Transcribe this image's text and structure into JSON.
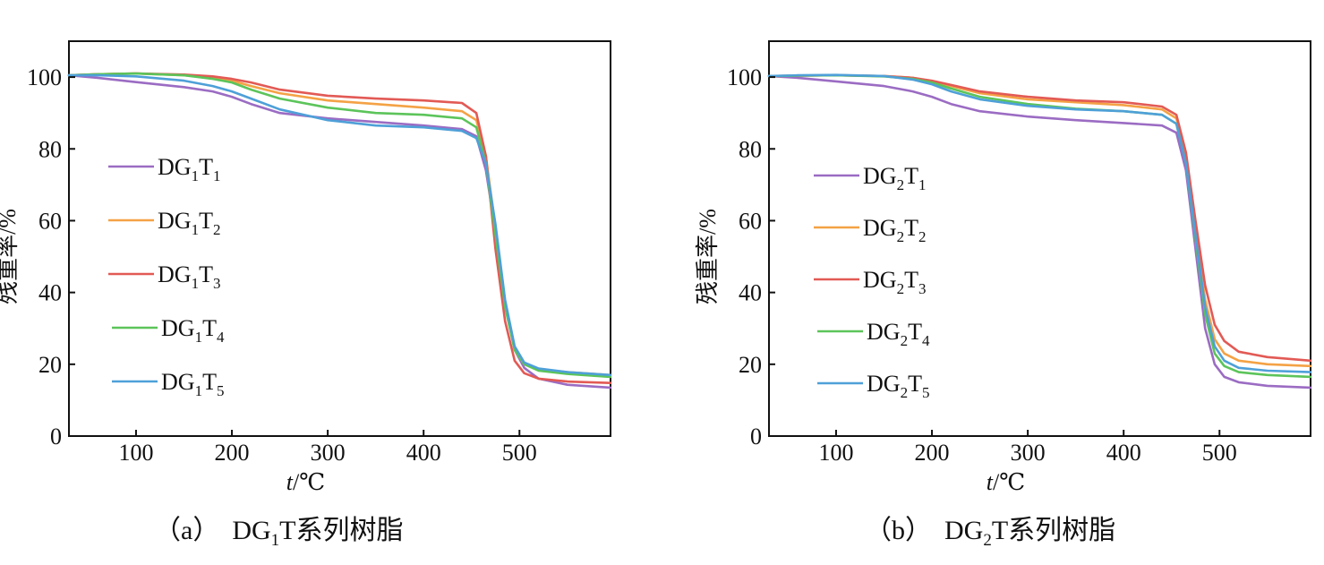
{
  "chart_data": [
    {
      "type": "line",
      "caption": {
        "tag": "（a）",
        "prefix": "DG",
        "sub": "1",
        "suffix": "T系列树脂"
      },
      "xlabel": {
        "var": "t",
        "unit": "/℃"
      },
      "ylabel": "残重率/%",
      "xlim": [
        30,
        595
      ],
      "ylim": [
        0,
        110
      ],
      "xticks": [
        100,
        200,
        300,
        400,
        500
      ],
      "yticks": [
        0,
        20,
        40,
        60,
        80,
        100
      ],
      "grid": false,
      "legend_position": "left-center",
      "series": [
        {
          "name": "DG1T1",
          "label": {
            "prefix": "DG",
            "s1": "1",
            "mid": "T",
            "s2": "1"
          },
          "color": "#9B6CC3",
          "x": [
            30,
            60,
            100,
            150,
            180,
            200,
            220,
            250,
            300,
            350,
            400,
            440,
            455,
            465,
            475,
            485,
            495,
            505,
            520,
            550,
            595
          ],
          "y": [
            100.5,
            99.8,
            98.6,
            97.2,
            96.0,
            94.5,
            92.5,
            90.0,
            88.5,
            87.5,
            86.5,
            85.5,
            83.5,
            74.0,
            57.0,
            37.0,
            24.0,
            19.0,
            16.0,
            14.3,
            13.5
          ]
        },
        {
          "name": "DG1T2",
          "label": {
            "prefix": "DG",
            "s1": "1",
            "mid": "T",
            "s2": "2"
          },
          "color": "#F4A245",
          "x": [
            30,
            60,
            100,
            150,
            180,
            200,
            220,
            250,
            300,
            350,
            400,
            440,
            455,
            465,
            475,
            485,
            495,
            505,
            520,
            550,
            595
          ],
          "y": [
            100.5,
            100.8,
            101.0,
            100.5,
            99.8,
            99.0,
            97.5,
            95.5,
            93.5,
            92.5,
            91.5,
            90.5,
            88.0,
            78.0,
            58.0,
            37.0,
            24.0,
            20.0,
            18.5,
            17.8,
            17.0
          ]
        },
        {
          "name": "DG1T3",
          "label": {
            "prefix": "DG",
            "s1": "1",
            "mid": "T",
            "s2": "3"
          },
          "color": "#E25A55",
          "x": [
            30,
            60,
            100,
            150,
            180,
            200,
            220,
            250,
            300,
            350,
            400,
            440,
            455,
            465,
            475,
            485,
            495,
            505,
            520,
            550,
            595
          ],
          "y": [
            100.5,
            100.8,
            101.0,
            100.7,
            100.2,
            99.5,
            98.5,
            96.5,
            94.8,
            94.0,
            93.5,
            92.8,
            90.0,
            78.0,
            52.0,
            32.0,
            21.0,
            17.5,
            16.0,
            15.2,
            14.8
          ]
        },
        {
          "name": "DG1T4",
          "label": {
            "prefix": "DG",
            "s1": "1",
            "mid": "T",
            "s2": "4"
          },
          "color": "#5CC45A",
          "x": [
            30,
            60,
            100,
            150,
            180,
            200,
            220,
            250,
            300,
            350,
            400,
            440,
            455,
            465,
            475,
            485,
            495,
            505,
            520,
            550,
            595
          ],
          "y": [
            100.5,
            100.8,
            101.0,
            100.5,
            99.5,
            98.5,
            96.5,
            94.0,
            91.5,
            90.0,
            89.5,
            88.5,
            86.0,
            76.0,
            56.0,
            36.0,
            24.0,
            20.0,
            18.2,
            17.3,
            16.5
          ]
        },
        {
          "name": "DG1T5",
          "label": {
            "prefix": "DG",
            "s1": "1",
            "mid": "T",
            "s2": "5"
          },
          "color": "#4EA0D8",
          "x": [
            30,
            60,
            100,
            150,
            180,
            200,
            220,
            250,
            300,
            350,
            400,
            440,
            455,
            465,
            475,
            485,
            495,
            505,
            520,
            550,
            595
          ],
          "y": [
            100.5,
            100.5,
            100.2,
            99.0,
            97.5,
            96.0,
            94.0,
            91.0,
            88.0,
            86.5,
            86.0,
            85.0,
            83.0,
            76.0,
            59.0,
            38.0,
            25.0,
            20.5,
            18.8,
            17.8,
            17.0
          ]
        }
      ]
    },
    {
      "type": "line",
      "caption": {
        "tag": "（b）",
        "prefix": "DG",
        "sub": "2",
        "suffix": "T系列树脂"
      },
      "xlabel": {
        "var": "t",
        "unit": "/℃"
      },
      "ylabel": "残重率/%",
      "xlim": [
        30,
        595
      ],
      "ylim": [
        0,
        110
      ],
      "xticks": [
        100,
        200,
        300,
        400,
        500
      ],
      "yticks": [
        0,
        20,
        40,
        60,
        80,
        100
      ],
      "grid": false,
      "legend_position": "left-center",
      "series": [
        {
          "name": "DG2T1",
          "label": {
            "prefix": "DG",
            "s1": "2",
            "mid": "T",
            "s2": "1"
          },
          "color": "#9B6CC3",
          "x": [
            30,
            60,
            100,
            150,
            180,
            200,
            220,
            250,
            300,
            350,
            400,
            440,
            455,
            465,
            475,
            485,
            495,
            505,
            520,
            550,
            595
          ],
          "y": [
            100.3,
            99.8,
            98.8,
            97.5,
            96.0,
            94.5,
            92.5,
            90.5,
            89.0,
            88.0,
            87.2,
            86.5,
            84.5,
            74.0,
            52.0,
            30.0,
            20.0,
            16.5,
            15.0,
            14.0,
            13.5
          ]
        },
        {
          "name": "DG2T2",
          "label": {
            "prefix": "DG",
            "s1": "2",
            "mid": "T",
            "s2": "2"
          },
          "color": "#F4A245",
          "x": [
            30,
            60,
            100,
            150,
            180,
            200,
            220,
            250,
            300,
            350,
            400,
            440,
            455,
            465,
            475,
            485,
            495,
            505,
            520,
            550,
            595
          ],
          "y": [
            100.3,
            100.4,
            100.5,
            100.3,
            99.8,
            98.8,
            97.5,
            95.5,
            93.8,
            93.0,
            92.2,
            91.0,
            88.5,
            78.0,
            57.0,
            38.0,
            27.0,
            23.0,
            21.0,
            20.0,
            19.5
          ]
        },
        {
          "name": "DG2T3",
          "label": {
            "prefix": "DG",
            "s1": "2",
            "mid": "T",
            "s2": "3"
          },
          "color": "#E25A55",
          "x": [
            30,
            60,
            100,
            150,
            180,
            200,
            220,
            250,
            300,
            350,
            400,
            440,
            455,
            465,
            475,
            485,
            495,
            505,
            520,
            550,
            595
          ],
          "y": [
            100.3,
            100.4,
            100.5,
            100.3,
            99.8,
            99.0,
            97.8,
            96.0,
            94.5,
            93.5,
            93.0,
            91.8,
            89.5,
            79.0,
            60.0,
            42.0,
            31.0,
            26.5,
            23.5,
            22.0,
            21.0
          ]
        },
        {
          "name": "DG2T4",
          "label": {
            "prefix": "DG",
            "s1": "2",
            "mid": "T",
            "s2": "4"
          },
          "color": "#5CC45A",
          "x": [
            30,
            60,
            100,
            150,
            180,
            200,
            220,
            250,
            300,
            350,
            400,
            440,
            455,
            465,
            475,
            485,
            495,
            505,
            520,
            550,
            595
          ],
          "y": [
            100.3,
            100.4,
            100.5,
            100.2,
            99.5,
            98.5,
            96.8,
            94.5,
            92.5,
            91.2,
            90.5,
            89.5,
            87.0,
            76.0,
            55.0,
            34.0,
            23.0,
            19.5,
            17.8,
            17.0,
            16.5
          ]
        },
        {
          "name": "DG2T5",
          "label": {
            "prefix": "DG",
            "s1": "2",
            "mid": "T",
            "s2": "5"
          },
          "color": "#4EA0D8",
          "x": [
            30,
            60,
            100,
            150,
            180,
            200,
            220,
            250,
            300,
            350,
            400,
            440,
            455,
            465,
            475,
            485,
            495,
            505,
            520,
            550,
            595
          ],
          "y": [
            100.3,
            100.5,
            100.6,
            100.3,
            99.3,
            98.0,
            96.0,
            93.8,
            92.0,
            91.0,
            90.5,
            89.5,
            87.0,
            76.0,
            56.0,
            36.0,
            25.0,
            21.0,
            19.0,
            18.2,
            17.8
          ]
        }
      ]
    }
  ]
}
